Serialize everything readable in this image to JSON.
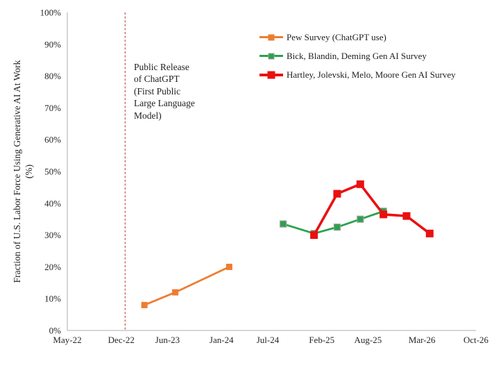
{
  "chart_data": {
    "type": "line",
    "title": "",
    "ylabel_line1": "Fraction of U.S. Labor Force Using Generative AI At Work",
    "ylabel_line2": "(%)",
    "ylim": [
      0,
      100
    ],
    "y_tick_step": 10,
    "y_tick_suffix": "%",
    "x_tick_labels": [
      "May-22",
      "Dec-22",
      "Jun-23",
      "Jan-24",
      "Jul-24",
      "Feb-25",
      "Aug-25",
      "Mar-26",
      "Oct-26"
    ],
    "x_start": "May-22",
    "x_end": "Oct-26",
    "grid": false,
    "legend_position": "top-right-inside",
    "axis_color": "#BFBFBF",
    "annotation": {
      "lines": [
        "Public Release",
        "of ChatGPT",
        "(First Public",
        "Large Language",
        "Model)"
      ]
    },
    "release_line": {
      "label": "Public Release of ChatGPT",
      "date": "Dec-22",
      "months_after_start": 7.5,
      "color": "#C65349",
      "style": "dashed"
    },
    "series": [
      {
        "name": "Pew Survey (ChatGPT use)",
        "color": "#ED7D31",
        "marker": "square",
        "points": [
          {
            "date": "Mar-23",
            "value": 8
          },
          {
            "date": "Jul-23",
            "value": 12
          },
          {
            "date": "Feb-24",
            "value": 20
          }
        ]
      },
      {
        "name": "Bick, Blandin, Deming Gen AI Survey",
        "color": "#29A34C",
        "marker": "square",
        "marker_border": "#9E9E9E",
        "points": [
          {
            "date": "Sep-24",
            "value": 33.5
          },
          {
            "date": "Jan-25",
            "value": 30.5
          },
          {
            "date": "Apr-25",
            "value": 32.5
          },
          {
            "date": "Jul-25",
            "value": 35
          },
          {
            "date": "Oct-25",
            "value": 37.5
          }
        ]
      },
      {
        "name": "Hartley, Jolevski, Melo, Moore Gen AI Survey",
        "color": "#EA1010",
        "marker": "square",
        "points": [
          {
            "date": "Jan-25",
            "value": 30
          },
          {
            "date": "Apr-25",
            "value": 43
          },
          {
            "date": "Jul-25",
            "value": 46
          },
          {
            "date": "Oct-25",
            "value": 36.5
          },
          {
            "date": "Jan-26",
            "value": 36
          },
          {
            "date": "Apr-26",
            "value": 30.5
          }
        ]
      }
    ]
  }
}
